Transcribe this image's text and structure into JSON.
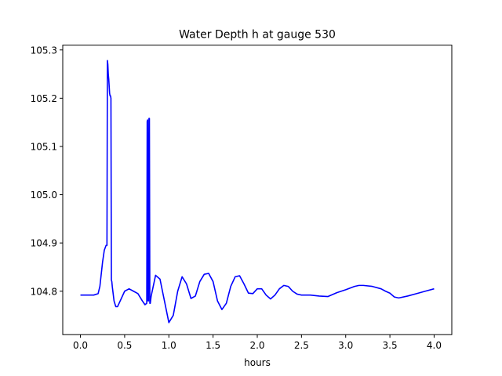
{
  "chart_data": {
    "type": "line",
    "title": "Water Depth h at gauge 530",
    "xlabel": "hours",
    "ylabel": "",
    "xlim": [
      -0.2,
      4.2
    ],
    "ylim": [
      104.71,
      105.31
    ],
    "xticks": [
      0.0,
      0.5,
      1.0,
      1.5,
      2.0,
      2.5,
      3.0,
      3.5,
      4.0
    ],
    "xtick_labels": [
      "0.0",
      "0.5",
      "1.0",
      "1.5",
      "2.0",
      "2.5",
      "3.0",
      "3.5",
      "4.0"
    ],
    "yticks": [
      104.8,
      104.9,
      105.0,
      105.1,
      105.2,
      105.3
    ],
    "ytick_labels": [
      "104.8",
      "104.9",
      "105.0",
      "105.1",
      "105.2",
      "105.3"
    ],
    "grid": false,
    "series": [
      {
        "color": "#0000ff",
        "x": [
          0.0,
          0.1,
          0.15,
          0.2,
          0.22,
          0.25,
          0.27,
          0.29,
          0.3,
          0.305,
          0.31,
          0.315,
          0.32,
          0.33,
          0.335,
          0.34,
          0.345,
          0.35,
          0.355,
          0.36,
          0.38,
          0.4,
          0.42,
          0.45,
          0.5,
          0.55,
          0.6,
          0.65,
          0.7,
          0.73,
          0.75,
          0.755,
          0.76,
          0.765,
          0.77,
          0.775,
          0.78,
          0.785,
          0.79,
          0.8,
          0.85,
          0.9,
          0.95,
          1.0,
          1.05,
          1.1,
          1.15,
          1.2,
          1.25,
          1.3,
          1.35,
          1.4,
          1.45,
          1.5,
          1.55,
          1.6,
          1.65,
          1.7,
          1.75,
          1.8,
          1.85,
          1.9,
          1.95,
          2.0,
          2.05,
          2.1,
          2.15,
          2.2,
          2.25,
          2.3,
          2.35,
          2.4,
          2.45,
          2.5,
          2.6,
          2.7,
          2.8,
          2.9,
          3.0,
          3.1,
          3.15,
          3.2,
          3.3,
          3.4,
          3.45,
          3.5,
          3.55,
          3.6,
          3.7,
          3.8,
          3.9,
          4.0
        ],
        "y": [
          104.792,
          104.792,
          104.792,
          104.795,
          104.81,
          104.86,
          104.885,
          104.895,
          104.895,
          105.278,
          105.27,
          105.25,
          105.24,
          105.21,
          105.205,
          105.205,
          105.2,
          104.823,
          104.82,
          104.81,
          104.78,
          104.768,
          104.768,
          104.78,
          104.8,
          104.805,
          104.8,
          104.795,
          104.78,
          104.772,
          104.775,
          105.152,
          105.155,
          104.78,
          104.78,
          105.158,
          105.158,
          104.775,
          104.775,
          104.79,
          104.833,
          104.825,
          104.78,
          104.735,
          104.75,
          104.8,
          104.83,
          104.815,
          104.785,
          104.79,
          104.82,
          104.835,
          104.837,
          104.82,
          104.78,
          104.762,
          104.775,
          104.81,
          104.83,
          104.832,
          104.815,
          104.796,
          104.795,
          104.805,
          104.805,
          104.792,
          104.784,
          104.792,
          104.805,
          104.812,
          104.81,
          104.8,
          104.794,
          104.792,
          104.792,
          104.79,
          104.789,
          104.797,
          104.803,
          104.81,
          104.812,
          104.812,
          104.81,
          104.805,
          104.8,
          104.796,
          104.788,
          104.786,
          104.79,
          104.795,
          104.8,
          104.805
        ]
      }
    ]
  }
}
